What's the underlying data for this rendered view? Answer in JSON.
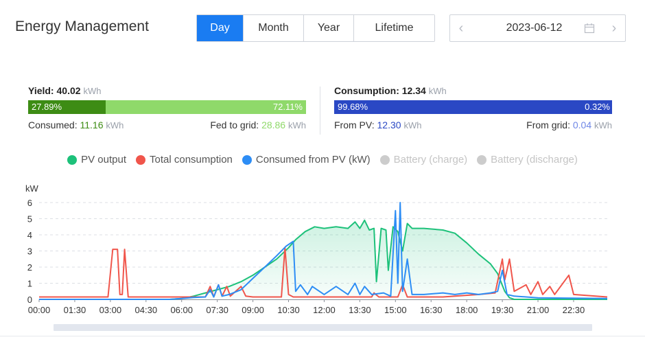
{
  "header": {
    "title": "Energy Management"
  },
  "period_tabs": [
    {
      "label": "Day",
      "active": true
    },
    {
      "label": "Month",
      "active": false
    },
    {
      "label": "Year",
      "active": false
    },
    {
      "label": "Lifetime",
      "active": false
    }
  ],
  "date_picker": {
    "value": "2023-06-12",
    "prev_icon": "chevron-left-icon",
    "next_icon": "chevron-right-icon",
    "calendar_icon": "calendar-icon"
  },
  "yield": {
    "label": "Yield:",
    "value": "40.02",
    "unit": "kWh",
    "consumed_pct": "27.89%",
    "fed_pct": "72.11%",
    "consumed_fraction": 0.2789,
    "consumed_label": "Consumed:",
    "consumed_value": "11.16",
    "consumed_unit": "kWh",
    "fed_label": "Fed to grid:",
    "fed_value": "28.86",
    "fed_unit": "kWh"
  },
  "consumption": {
    "label": "Consumption:",
    "value": "12.34",
    "unit": "kWh",
    "pv_pct": "99.68%",
    "grid_pct": "0.32%",
    "pv_fraction": 0.9968,
    "from_pv_label": "From PV:",
    "from_pv_value": "12.30",
    "from_pv_unit": "kWh",
    "from_grid_label": "From grid:",
    "from_grid_value": "0.04",
    "from_grid_unit": "kWh"
  },
  "colors": {
    "accent": "#1a7cf2",
    "pv": "#1dc17a",
    "consumption": "#f0554b",
    "consumed_from_pv": "#2d8df5",
    "disabled": "#cccccc",
    "yield_dark": "#3d8c14",
    "yield_light": "#8fd96a",
    "consumption_dark": "#2a48c4",
    "consumption_light": "#6f87e6"
  },
  "legend": [
    {
      "label": "PV output",
      "color": "#1dc17a",
      "enabled": true
    },
    {
      "label": "Total consumption",
      "color": "#f0554b",
      "enabled": true
    },
    {
      "label": "Consumed from PV (kW)",
      "color": "#2d8df5",
      "enabled": true
    },
    {
      "label": "Battery (charge)",
      "color": "#cccccc",
      "enabled": false
    },
    {
      "label": "Battery (discharge)",
      "color": "#cccccc",
      "enabled": false
    }
  ],
  "chart_data": {
    "type": "line",
    "ylabel": "kW",
    "ylim": [
      0,
      6
    ],
    "yticks": [
      0,
      1,
      2,
      3,
      4,
      5,
      6
    ],
    "xlim_hours": [
      0,
      23.9167
    ],
    "xtick_labels": [
      "00:00",
      "01:30",
      "03:00",
      "04:30",
      "06:00",
      "07:30",
      "09:00",
      "10:30",
      "12:00",
      "13:30",
      "15:00",
      "16:30",
      "18:00",
      "19:30",
      "21:00",
      "22:30"
    ],
    "grid": true,
    "series": [
      {
        "name": "PV output",
        "color": "#1dc17a",
        "fill": true,
        "points": [
          [
            0,
            0
          ],
          [
            5.5,
            0
          ],
          [
            6.0,
            0.05
          ],
          [
            6.5,
            0.2
          ],
          [
            7.0,
            0.4
          ],
          [
            7.5,
            0.6
          ],
          [
            8.0,
            0.8
          ],
          [
            8.5,
            1.1
          ],
          [
            9.0,
            1.5
          ],
          [
            9.5,
            2.0
          ],
          [
            10.0,
            2.5
          ],
          [
            10.5,
            3.2
          ],
          [
            10.8,
            3.7
          ],
          [
            11.2,
            4.2
          ],
          [
            11.6,
            4.5
          ],
          [
            12.0,
            4.4
          ],
          [
            12.5,
            4.5
          ],
          [
            13.0,
            4.4
          ],
          [
            13.3,
            4.8
          ],
          [
            13.5,
            4.4
          ],
          [
            13.7,
            4.9
          ],
          [
            13.9,
            4.3
          ],
          [
            14.1,
            4.4
          ],
          [
            14.2,
            1.1
          ],
          [
            14.4,
            4.4
          ],
          [
            14.6,
            4.3
          ],
          [
            14.7,
            1.8
          ],
          [
            14.9,
            4.5
          ],
          [
            15.1,
            4.2
          ],
          [
            15.3,
            3.0
          ],
          [
            15.5,
            4.7
          ],
          [
            15.7,
            4.4
          ],
          [
            16.2,
            4.4
          ],
          [
            17.0,
            4.3
          ],
          [
            17.5,
            4.1
          ],
          [
            18.0,
            3.5
          ],
          [
            18.5,
            2.8
          ],
          [
            19.0,
            2.2
          ],
          [
            19.3,
            1.6
          ],
          [
            19.6,
            0.5
          ],
          [
            19.8,
            0.1
          ],
          [
            20.0,
            0
          ],
          [
            23.9167,
            0
          ]
        ]
      },
      {
        "name": "Total consumption",
        "color": "#f0554b",
        "fill": false,
        "points": [
          [
            0,
            0.15
          ],
          [
            2.9,
            0.15
          ],
          [
            3.1,
            3.1
          ],
          [
            3.3,
            3.1
          ],
          [
            3.4,
            0.3
          ],
          [
            3.5,
            0.3
          ],
          [
            3.6,
            3.1
          ],
          [
            3.75,
            0.15
          ],
          [
            7.0,
            0.15
          ],
          [
            7.2,
            0.8
          ],
          [
            7.35,
            0.15
          ],
          [
            7.55,
            0.9
          ],
          [
            7.7,
            0.2
          ],
          [
            7.9,
            0.8
          ],
          [
            8.05,
            0.2
          ],
          [
            8.5,
            0.8
          ],
          [
            8.7,
            0.2
          ],
          [
            9.0,
            0.15
          ],
          [
            10.2,
            0.15
          ],
          [
            10.35,
            3.2
          ],
          [
            10.5,
            0.3
          ],
          [
            10.7,
            0.15
          ],
          [
            14.0,
            0.15
          ],
          [
            14.1,
            0.4
          ],
          [
            14.3,
            0.15
          ],
          [
            15.1,
            0.15
          ],
          [
            15.3,
            0.9
          ],
          [
            15.5,
            0.15
          ],
          [
            17.0,
            0.15
          ],
          [
            18.5,
            0.3
          ],
          [
            19.2,
            0.4
          ],
          [
            19.5,
            2.5
          ],
          [
            19.6,
            1.2
          ],
          [
            19.8,
            2.5
          ],
          [
            20.0,
            0.5
          ],
          [
            20.5,
            0.9
          ],
          [
            20.7,
            0.3
          ],
          [
            21.0,
            1.1
          ],
          [
            21.2,
            0.3
          ],
          [
            21.5,
            0.8
          ],
          [
            21.7,
            0.3
          ],
          [
            22.3,
            1.5
          ],
          [
            22.5,
            0.3
          ],
          [
            23.9167,
            0.15
          ]
        ]
      },
      {
        "name": "Consumed from PV (kW)",
        "color": "#2d8df5",
        "fill": false,
        "points": [
          [
            0,
            0
          ],
          [
            5.5,
            0
          ],
          [
            6.0,
            0.05
          ],
          [
            6.5,
            0.12
          ],
          [
            7.0,
            0.15
          ],
          [
            7.2,
            0.6
          ],
          [
            7.35,
            0.15
          ],
          [
            7.55,
            0.9
          ],
          [
            7.7,
            0.2
          ],
          [
            8.0,
            0.3
          ],
          [
            8.5,
            0.6
          ],
          [
            9.0,
            1.3
          ],
          [
            9.5,
            2.0
          ],
          [
            10.0,
            2.7
          ],
          [
            10.4,
            3.3
          ],
          [
            10.7,
            3.6
          ],
          [
            10.8,
            0.5
          ],
          [
            11.0,
            0.9
          ],
          [
            11.3,
            0.3
          ],
          [
            11.5,
            0.8
          ],
          [
            12.0,
            0.3
          ],
          [
            12.5,
            0.8
          ],
          [
            13.0,
            0.3
          ],
          [
            13.3,
            1.0
          ],
          [
            13.5,
            0.3
          ],
          [
            13.7,
            0.8
          ],
          [
            14.0,
            0.3
          ],
          [
            14.5,
            0.4
          ],
          [
            14.8,
            0.2
          ],
          [
            15.0,
            5.5
          ],
          [
            15.1,
            1.0
          ],
          [
            15.2,
            6.0
          ],
          [
            15.3,
            0.5
          ],
          [
            15.5,
            2.5
          ],
          [
            15.7,
            0.3
          ],
          [
            16.2,
            0.3
          ],
          [
            17.0,
            0.4
          ],
          [
            17.5,
            0.3
          ],
          [
            18.0,
            0.4
          ],
          [
            18.5,
            0.3
          ],
          [
            19.0,
            0.4
          ],
          [
            19.3,
            0.5
          ],
          [
            19.5,
            1.8
          ],
          [
            19.7,
            0.3
          ],
          [
            20.0,
            0.2
          ],
          [
            21.0,
            0.1
          ],
          [
            23.9167,
            0.05
          ]
        ]
      }
    ]
  }
}
